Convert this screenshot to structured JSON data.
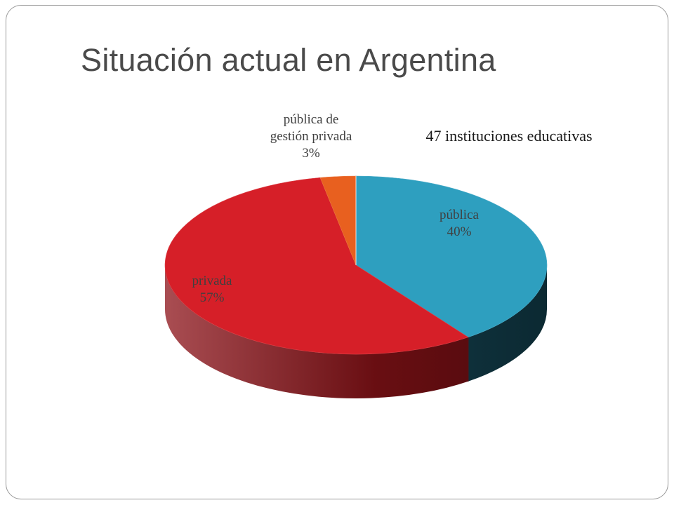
{
  "slide": {
    "title": "Situación actual en Argentina"
  },
  "chart_data": {
    "type": "pie",
    "style": "3d",
    "annotation": "47 instituciones educativas",
    "slices": [
      {
        "label_lines": [
          "pública",
          "40%"
        ],
        "value": 40,
        "color": "#2e9fbf",
        "side_color": "#154a5a"
      },
      {
        "label_lines": [
          "privada",
          "57%"
        ],
        "value": 57,
        "color": "#d61f28",
        "side_color": "#8c1218"
      },
      {
        "label_lines": [
          "pública de",
          "gestión privada",
          "3%"
        ],
        "value": 3,
        "color": "#e8601f",
        "side_color": "#9a3f12"
      }
    ]
  }
}
